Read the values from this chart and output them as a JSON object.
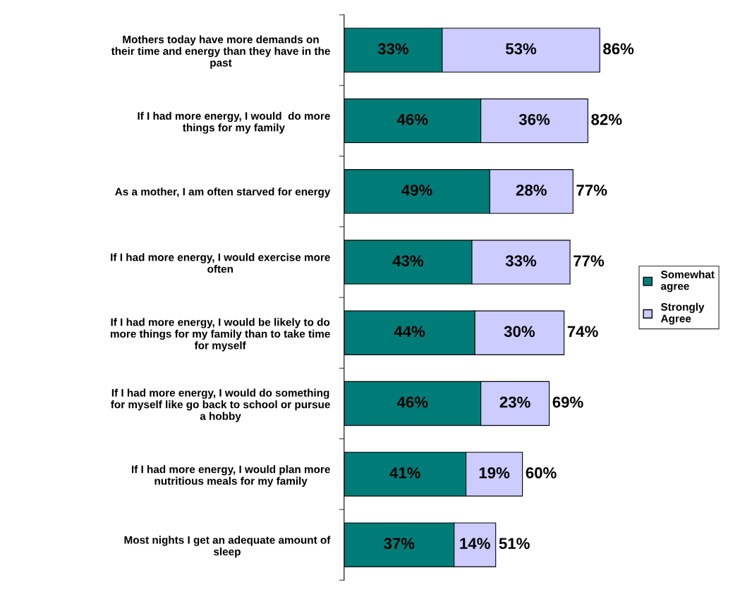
{
  "chart_data": {
    "type": "bar",
    "orientation": "horizontal",
    "stacked": true,
    "categories": [
      "Mothers today have more demands on\ntheir time and energy than they have in the\npast",
      "If I had more energy, I would  do more\nthings for my family",
      "As a mother, I am often starved for energy",
      "If I had more energy, I would exercise more\noften",
      "If I had more energy, I would be likely to do\nmore things for my family than to take time\nfor myself",
      "If I had more energy, I would do something\nfor myself like go back to school or pursue\na hobby",
      "If I had more energy, I would plan more\nnutritious meals for my family",
      "Most nights I get an adequate amount of\nsleep"
    ],
    "series": [
      {
        "name": "Somewhat agree",
        "color": "#007c78",
        "values": [
          33,
          46,
          49,
          43,
          44,
          46,
          41,
          37
        ],
        "value_labels": [
          "33%",
          "46%",
          "49%",
          "43%",
          "44%",
          "46%",
          "41%",
          "37%"
        ]
      },
      {
        "name": "Strongly Agree",
        "color": "#ccccff",
        "values": [
          53,
          36,
          28,
          33,
          30,
          23,
          19,
          14
        ],
        "value_labels": [
          "53%",
          "36%",
          "28%",
          "33%",
          "30%",
          "23%",
          "19%",
          "14%"
        ]
      }
    ],
    "totals": [
      "86%",
      "82%",
      "77%",
      "77%",
      "74%",
      "69%",
      "60%",
      "51%"
    ],
    "tick_labels": "y",
    "grid": false,
    "legend": "right"
  }
}
